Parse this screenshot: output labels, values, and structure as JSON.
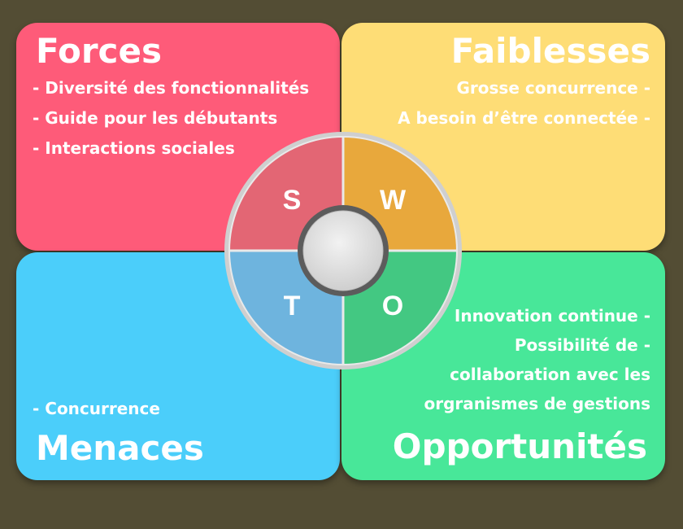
{
  "strengths": {
    "title": "Forces",
    "items": [
      "- Diversité des fonctionnalités",
      "- Guide pour les débutants",
      "- Interactions sociales"
    ]
  },
  "weaknesses": {
    "title": "Faiblesses",
    "items": [
      "Grosse concurrence -",
      "A besoin d’être connectée -"
    ]
  },
  "threats": {
    "title": "Menaces",
    "items": [
      "- Concurrence"
    ]
  },
  "opportunities": {
    "title": "Opportunités",
    "items": [
      "Innovation continue -",
      "Possibilité de -",
      "collaboration avec les",
      "orgranismes de gestions"
    ]
  },
  "wheel": {
    "letters": [
      "S",
      "W",
      "T",
      "O"
    ]
  },
  "colors": {
    "background": "#534d34",
    "strengths": "#fe5b79",
    "weaknesses": "#fedd76",
    "threats": "#4bcefa",
    "opportunities": "#48e799",
    "wheel_s": "#e36674",
    "wheel_w": "#e8a83c",
    "wheel_t": "#6eb4de",
    "wheel_o": "#43c882"
  }
}
